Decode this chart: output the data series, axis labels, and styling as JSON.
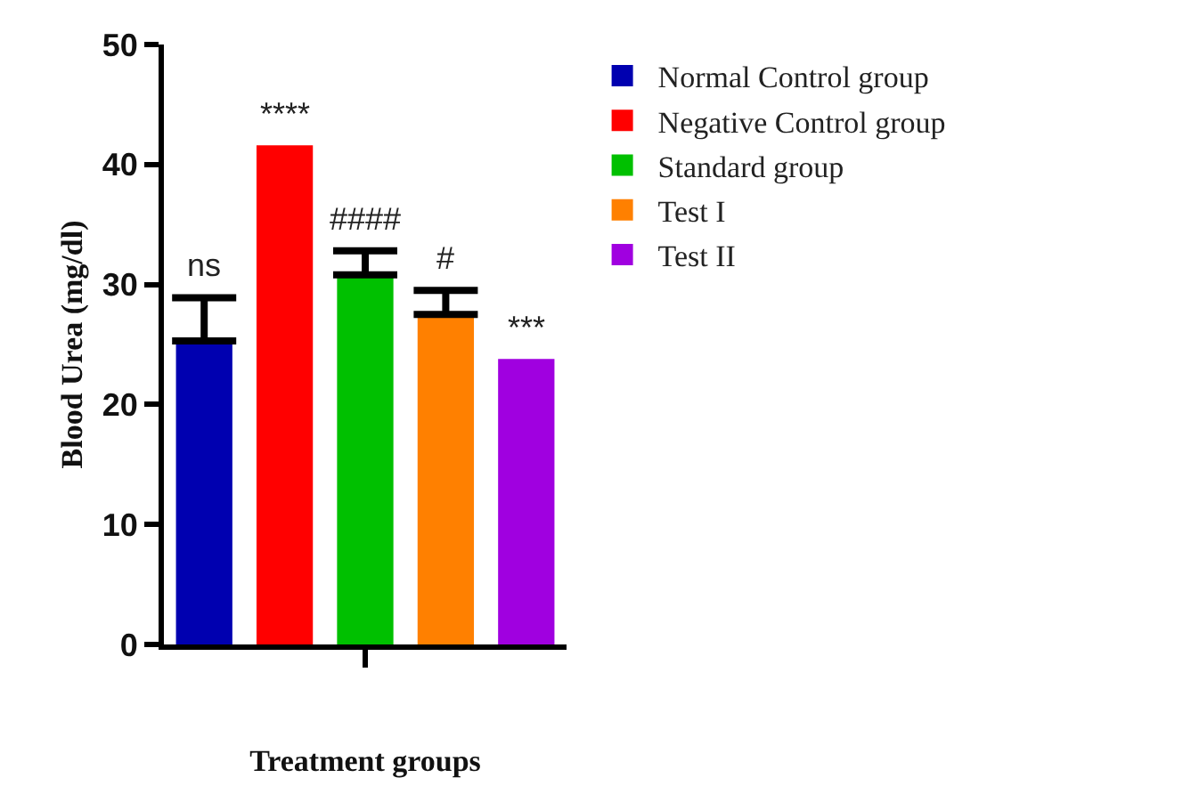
{
  "chart_data": {
    "type": "bar",
    "xlabel": "Treatment groups",
    "ylabel": "Blood Urea (mg/dl)",
    "categories": [
      null,
      null,
      null,
      null,
      null
    ],
    "series": [
      {
        "name": "Normal Control group",
        "color": "#0000b0",
        "values": [
          25.3,
          null,
          null,
          null,
          null
        ],
        "errors": [
          [
            25.3,
            28.9
          ],
          null,
          null,
          null,
          null
        ]
      },
      {
        "name": "Negative Control group",
        "color": "#ff0000",
        "values": [
          null,
          41.6,
          null,
          null,
          null
        ]
      },
      {
        "name": "Standard group",
        "color": "#00c000",
        "values": [
          null,
          null,
          30.8,
          null,
          null
        ],
        "errors": [
          null,
          null,
          [
            30.8,
            32.8
          ],
          null,
          null
        ]
      },
      {
        "name": "Test I",
        "color": "#ff8000",
        "values": [
          null,
          null,
          null,
          27.5,
          null
        ],
        "errors": [
          null,
          null,
          null,
          [
            27.5,
            29.5
          ],
          null
        ]
      },
      {
        "name": "Test II",
        "color": "#a000e0",
        "values": [
          null,
          null,
          null,
          null,
          23.8
        ]
      }
    ],
    "annotations": [
      "ns",
      "****",
      "####",
      "#",
      "***"
    ],
    "ylim": [
      0,
      50
    ],
    "yticks": [
      0,
      10,
      20,
      30,
      40,
      50
    ],
    "grid": false,
    "legend": "top right"
  }
}
